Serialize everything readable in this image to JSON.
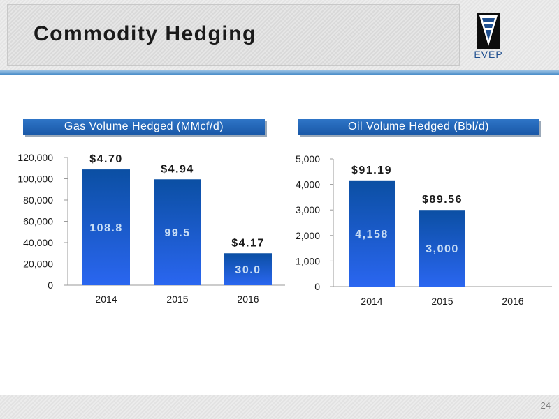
{
  "slide": {
    "title": "Commodity Hedging",
    "logo_text": "EVEP",
    "page_number": "24"
  },
  "colors": {
    "bar_top": "#0b4fa3",
    "bar_bottom": "#2a66f0",
    "header_blue": "#1f5fae",
    "rule_blue": "#3c84c4"
  },
  "chart_data": [
    {
      "type": "bar",
      "title": "Gas Volume Hedged (MMcf/d)",
      "categories": [
        "2014",
        "2015",
        "2016"
      ],
      "values": [
        108800,
        99500,
        30000
      ],
      "ylim": [
        0,
        120000
      ],
      "yticks": [
        0,
        20000,
        40000,
        60000,
        80000,
        100000,
        120000
      ],
      "ytick_labels": [
        "0",
        "20,000",
        "40,000",
        "60,000",
        "80,000",
        "100,000",
        "120,000"
      ],
      "bar_labels": [
        "108.8",
        "99.5",
        "30.0"
      ],
      "price_labels": [
        "$4.70",
        "$4.94",
        "$4.17"
      ],
      "grid": false
    },
    {
      "type": "bar",
      "title": "Oil Volume Hedged (Bbl/d)",
      "categories": [
        "2014",
        "2015",
        "2016"
      ],
      "values": [
        4158,
        3000,
        0
      ],
      "ylim": [
        0,
        5000
      ],
      "yticks": [
        0,
        1000,
        2000,
        3000,
        4000,
        5000
      ],
      "ytick_labels": [
        "0",
        "1,000",
        "2,000",
        "3,000",
        "4,000",
        "5,000"
      ],
      "bar_labels": [
        "4,158",
        "3,000",
        ""
      ],
      "price_labels": [
        "$91.19",
        "$89.56",
        ""
      ],
      "grid": false
    }
  ]
}
